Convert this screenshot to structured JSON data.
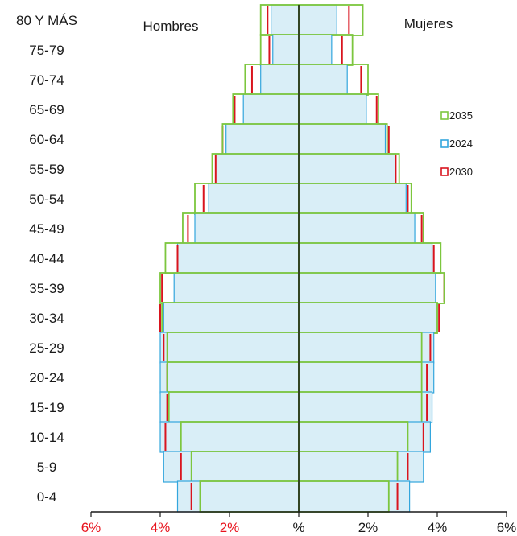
{
  "chart_data": {
    "type": "bar",
    "subtype": "population-pyramid",
    "x_unit": "%",
    "xlim": [
      -6,
      6
    ],
    "x_ticks": [
      {
        "value": -6,
        "label": "6%",
        "color": "#e8141e"
      },
      {
        "value": -4,
        "label": "4%",
        "color": "#e8141e"
      },
      {
        "value": -2,
        "label": "2%",
        "color": "#e8141e"
      },
      {
        "value": 0,
        "label": "%",
        "color": "#1a1a1a"
      },
      {
        "value": 2,
        "label": "2%",
        "color": "#1a1a1a"
      },
      {
        "value": 4,
        "label": "4%",
        "color": "#1a1a1a"
      },
      {
        "value": 6,
        "label": "6%",
        "color": "#1a1a1a"
      }
    ],
    "left_side_label": "Hombres",
    "right_side_label": "Mujeres",
    "categories": [
      "80 Y MÁS",
      "75-79",
      "70-74",
      "65-69",
      "60-64",
      "55-59",
      "50-54",
      "45-49",
      "40-44",
      "35-39",
      "30-34",
      "25-29",
      "20-24",
      "15-19",
      "10-14",
      "5-9",
      "0-4"
    ],
    "series": [
      {
        "name": "2024",
        "style": "filled",
        "fill": "#d9eef7",
        "stroke": "#33a6dd",
        "men": [
          0.8,
          0.75,
          1.1,
          1.6,
          2.1,
          2.4,
          2.6,
          3.0,
          3.5,
          3.6,
          3.9,
          4.0,
          4.0,
          4.0,
          4.0,
          3.9,
          3.5
        ],
        "women": [
          1.1,
          0.95,
          1.4,
          1.95,
          2.5,
          2.8,
          3.1,
          3.35,
          3.85,
          3.95,
          4.0,
          3.9,
          3.9,
          3.85,
          3.8,
          3.6,
          3.2
        ]
      },
      {
        "name": "2030",
        "style": "line",
        "stroke": "#d9141e",
        "men": [
          0.9,
          0.85,
          1.35,
          1.85,
          2.2,
          2.4,
          2.75,
          3.2,
          3.5,
          3.95,
          4.0,
          3.9,
          3.8,
          3.8,
          3.85,
          3.4,
          3.1
        ],
        "women": [
          1.45,
          1.25,
          1.8,
          2.25,
          2.6,
          2.8,
          3.15,
          3.55,
          3.9,
          4.2,
          4.05,
          3.8,
          3.7,
          3.7,
          3.6,
          3.15,
          2.85
        ]
      },
      {
        "name": "2035",
        "style": "outline",
        "stroke": "#7cc63e",
        "men": [
          1.1,
          1.1,
          1.55,
          1.9,
          2.2,
          2.5,
          3.0,
          3.35,
          3.85,
          4.0,
          3.95,
          3.8,
          3.8,
          3.75,
          3.4,
          3.1,
          2.85
        ],
        "women": [
          1.85,
          1.55,
          2.0,
          2.3,
          2.55,
          2.9,
          3.25,
          3.6,
          4.1,
          4.2,
          4.0,
          3.55,
          3.55,
          3.55,
          3.15,
          2.85,
          2.6
        ]
      }
    ],
    "legend": [
      {
        "label": "2035",
        "color": "#7cc63e"
      },
      {
        "label": "2024",
        "color": "#33a6dd"
      },
      {
        "label": "2030",
        "color": "#d9141e"
      }
    ],
    "legend_position": "right"
  }
}
